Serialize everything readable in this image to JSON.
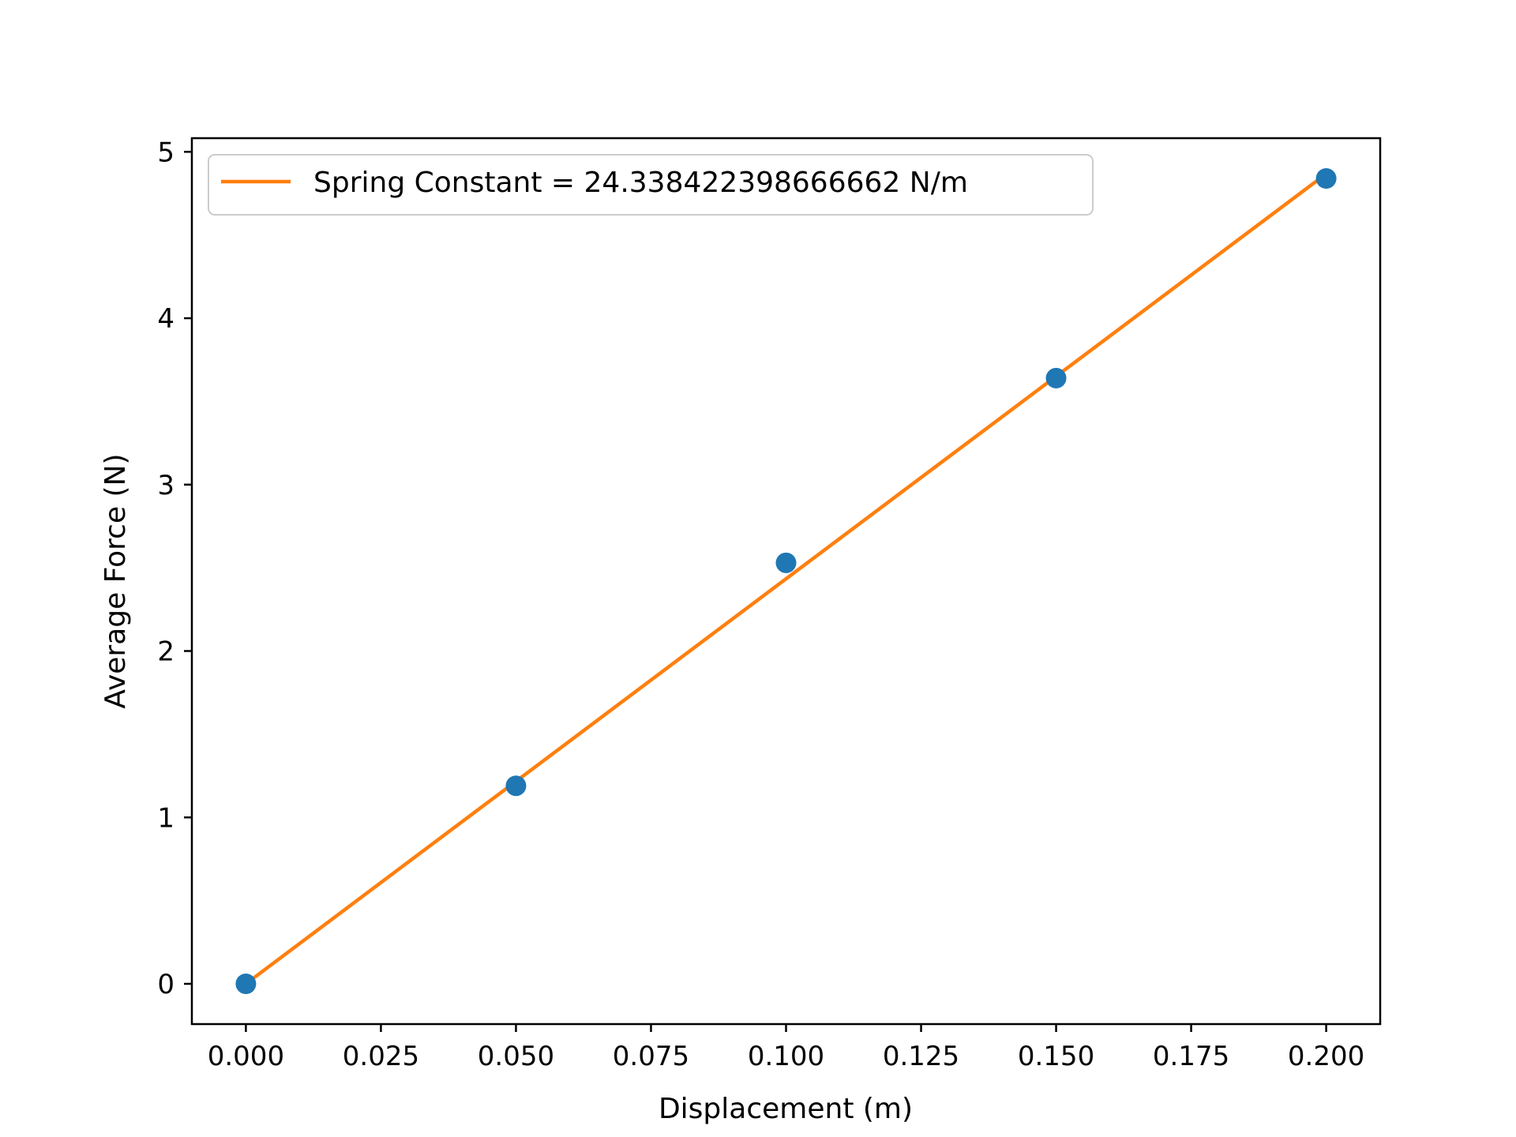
{
  "chart_data": {
    "type": "scatter",
    "x": [
      0.0,
      0.05,
      0.1,
      0.15,
      0.2
    ],
    "y": [
      0.0,
      1.19,
      2.53,
      3.64,
      4.84
    ],
    "series": [
      {
        "kind": "points",
        "x": [
          0.0,
          0.05,
          0.1,
          0.15,
          0.2
        ],
        "y": [
          0.0,
          1.19,
          2.53,
          3.64,
          4.84
        ],
        "color": "#1f77b4"
      },
      {
        "kind": "line",
        "name": "Spring Constant = 24.338422398666662 N/m",
        "x": [
          0.0,
          0.2
        ],
        "y": [
          0.0,
          4.8677
        ],
        "color": "#ff7f0e"
      }
    ],
    "xlabel": "Displacement (m)",
    "ylabel": "Average Force (N)",
    "xlim": [
      -0.01,
      0.21
    ],
    "ylim": [
      -0.242,
      5.082
    ],
    "xticks": [
      0.0,
      0.025,
      0.05,
      0.075,
      0.1,
      0.125,
      0.15,
      0.175,
      0.2
    ],
    "xtick_labels": [
      "0.000",
      "0.025",
      "0.050",
      "0.075",
      "0.100",
      "0.125",
      "0.150",
      "0.175",
      "0.200"
    ],
    "yticks": [
      0,
      1,
      2,
      3,
      4,
      5
    ],
    "ytick_labels": [
      "0",
      "1",
      "2",
      "3",
      "4",
      "5"
    ],
    "legend": {
      "position": "upper-left",
      "entries": [
        "Spring Constant = 24.338422398666662 N/m"
      ]
    },
    "grid": false
  }
}
